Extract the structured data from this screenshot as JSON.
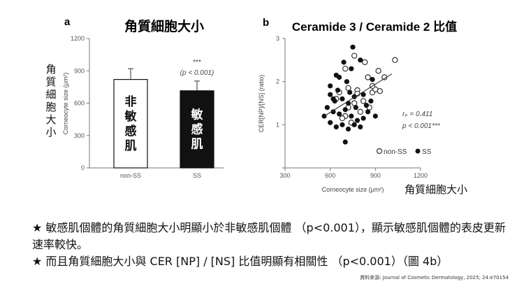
{
  "chart_data": [
    {
      "type": "bar",
      "panel": "a",
      "title": "角質細胞大小",
      "ylabel": "Corneocyte size (μm²)",
      "ylabel_zh": "角質細胞大小",
      "categories": [
        "non-SS",
        "SS"
      ],
      "values": [
        820,
        715
      ],
      "errors": [
        100,
        90
      ],
      "bar_labels": [
        "非敏感肌",
        "敏感肌"
      ],
      "bar_colors": [
        "#ffffff",
        "#111111"
      ],
      "ylim": [
        0,
        1200
      ],
      "yticks": [
        0,
        300,
        600,
        900,
        1200
      ],
      "significance": "***",
      "pvalue_label": "(p < 0.001)"
    },
    {
      "type": "scatter",
      "panel": "b",
      "title": "Ceramide 3 / Ceramide 2 比值",
      "xlabel": "Corneocyte size (μm²)",
      "xlabel_zh": "角質細胞大小",
      "ylabel": "CER[NP]/[NS] (ratio)",
      "xlim": [
        300,
        1200
      ],
      "ylim": [
        0,
        3
      ],
      "xticks": [
        300,
        600,
        900,
        1200
      ],
      "yticks": [
        0,
        1,
        2,
        3
      ],
      "annotation_r": "rₚ = 0.411",
      "annotation_p": "p < 0.001***",
      "trend": {
        "x": [
          560,
          1010
        ],
        "y": [
          1.2,
          2.18
        ]
      },
      "series": [
        {
          "name": "non-SS",
          "marker": "open",
          "points": [
            [
              700,
              2.3
            ],
            [
              760,
              2.6
            ],
            [
              830,
              2.45
            ],
            [
              920,
              2.25
            ],
            [
              1030,
              2.5
            ],
            [
              660,
              1.75
            ],
            [
              720,
              1.85
            ],
            [
              780,
              1.8
            ],
            [
              850,
              2.1
            ],
            [
              880,
              1.75
            ],
            [
              900,
              1.82
            ],
            [
              930,
              1.78
            ],
            [
              760,
              1.5
            ],
            [
              820,
              1.55
            ],
            [
              700,
              1.2
            ],
            [
              740,
              1.05
            ],
            [
              800,
              1.3
            ],
            [
              860,
              1.4
            ],
            [
              780,
              1.72
            ],
            [
              640,
              1.6
            ],
            [
              720,
              1.4
            ],
            [
              880,
              1.9
            ],
            [
              960,
              2.1
            ],
            [
              680,
              1.15
            ]
          ]
        },
        {
          "name": "SS",
          "marker": "filled",
          "points": [
            [
              750,
              2.8
            ],
            [
              690,
              2.45
            ],
            [
              640,
              2.15
            ],
            [
              740,
              2.3
            ],
            [
              800,
              2.5
            ],
            [
              710,
              2.0
            ],
            [
              650,
              1.8
            ],
            [
              600,
              1.7
            ],
            [
              630,
              1.55
            ],
            [
              680,
              1.6
            ],
            [
              720,
              1.5
            ],
            [
              760,
              1.65
            ],
            [
              820,
              1.7
            ],
            [
              870,
              1.55
            ],
            [
              580,
              1.4
            ],
            [
              620,
              1.3
            ],
            [
              660,
              1.25
            ],
            [
              700,
              1.35
            ],
            [
              740,
              1.2
            ],
            [
              780,
              1.1
            ],
            [
              820,
              1.15
            ],
            [
              600,
              1.05
            ],
            [
              640,
              0.95
            ],
            [
              680,
              1.0
            ],
            [
              720,
              0.9
            ],
            [
              760,
              1.0
            ],
            [
              800,
              0.95
            ],
            [
              850,
              1.3
            ],
            [
              900,
              1.2
            ],
            [
              560,
              1.2
            ],
            [
              700,
              0.6
            ],
            [
              620,
              1.6
            ],
            [
              840,
              1.45
            ],
            [
              880,
              2.05
            ],
            [
              660,
              2.1
            ],
            [
              600,
              1.9
            ],
            [
              770,
              1.4
            ],
            [
              730,
              1.75
            ]
          ]
        }
      ],
      "legend": [
        "non-SS",
        "SS"
      ]
    }
  ],
  "text": {
    "bullet1": "★ 敏感肌個體的角質細胞大小明顯小於非敏感肌個體 （p<0.001），顯示敏感肌個體的表皮更新速率較快。",
    "bullet2": "★ 而且角質細胞大小與 CER [NP] / [NS] 比值明顯有相關性 （p<0.001）（圖 4b）",
    "source": "資料來源: Journal of Cosmetic Dermatology, 2025; 24:e70154"
  }
}
